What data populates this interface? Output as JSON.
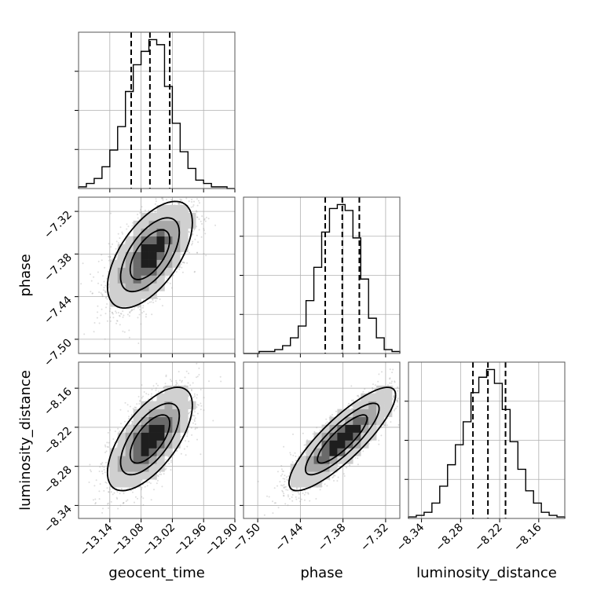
{
  "chart_data": {
    "type": "corner",
    "parameters": [
      {
        "name": "geocent_time",
        "axis_label": "geocent_time",
        "range": [
          -13.2,
          -12.9
        ],
        "ticks": [
          -13.14,
          -13.08,
          -13.02,
          -12.96,
          -12.9
        ],
        "tick_labels": [
          "−13.14",
          "−13.08",
          "−13.02",
          "−12.96",
          "−12.90"
        ],
        "quantiles": [
          -13.099,
          -13.063,
          -13.025
        ],
        "hist_bins": [
          -13.2,
          -13.185,
          -13.17,
          -13.155,
          -13.14,
          -13.125,
          -13.11,
          -13.095,
          -13.08,
          -13.065,
          -13.05,
          -13.035,
          -13.02,
          -13.005,
          -12.99,
          -12.975,
          -12.96,
          -12.945,
          -12.93,
          -12.915,
          -12.9
        ],
        "hist_counts": [
          1,
          3,
          6,
          13,
          23,
          37,
          58,
          74,
          82,
          89,
          86,
          61,
          39,
          22,
          12,
          5,
          3,
          1,
          1,
          0
        ]
      },
      {
        "name": "phase",
        "axis_label": "phase",
        "range": [
          -7.52,
          -7.3
        ],
        "ticks": [
          -7.5,
          -7.44,
          -7.38,
          -7.32
        ],
        "tick_labels": [
          "−7.50",
          "−7.44",
          "−7.38",
          "−7.32"
        ],
        "quantiles": [
          -7.405,
          -7.381,
          -7.357
        ],
        "hist_bins": [
          -7.52,
          -7.509,
          -7.498,
          -7.487,
          -7.476,
          -7.465,
          -7.454,
          -7.443,
          -7.432,
          -7.421,
          -7.41,
          -7.399,
          -7.388,
          -7.377,
          -7.366,
          -7.355,
          -7.344,
          -7.333,
          -7.322,
          -7.311,
          -7.3
        ],
        "hist_counts": [
          0,
          0,
          1,
          1,
          2,
          4,
          8,
          14,
          27,
          44,
          62,
          74,
          76,
          73,
          59,
          38,
          18,
          8,
          2,
          1
        ]
      },
      {
        "name": "luminosity_distance",
        "axis_label": "luminosity_distance",
        "range": [
          -8.36,
          -8.12
        ],
        "ticks": [
          -8.34,
          -8.28,
          -8.22,
          -8.16
        ],
        "tick_labels": [
          "−8.34",
          "−8.28",
          "−8.22",
          "−8.16"
        ],
        "quantiles": [
          -8.261,
          -8.238,
          -8.211
        ],
        "hist_bins": [
          -8.36,
          -8.348,
          -8.336,
          -8.324,
          -8.312,
          -8.3,
          -8.288,
          -8.276,
          -8.264,
          -8.252,
          -8.24,
          -8.228,
          -8.216,
          -8.204,
          -8.192,
          -8.18,
          -8.168,
          -8.156,
          -8.144,
          -8.132,
          -8.12
        ],
        "hist_counts": [
          1,
          2,
          4,
          10,
          21,
          35,
          48,
          63,
          82,
          92,
          97,
          88,
          71,
          50,
          32,
          18,
          10,
          4,
          2,
          1
        ]
      }
    ],
    "pairs": [
      {
        "x": "geocent_time",
        "y": "phase",
        "mean": [
          -13.063,
          -7.381
        ],
        "std": [
          0.038,
          0.035
        ],
        "corr": 0.6
      },
      {
        "x": "geocent_time",
        "y": "luminosity_distance",
        "mean": [
          -13.063,
          -8.238
        ],
        "std": [
          0.038,
          0.037
        ],
        "corr": 0.65
      },
      {
        "x": "phase",
        "y": "luminosity_distance",
        "mean": [
          -7.381,
          -8.238
        ],
        "std": [
          0.035,
          0.037
        ],
        "corr": 0.85
      }
    ],
    "grid": true,
    "colors": {
      "line": "#000000",
      "grid": "#b0b0b0",
      "points": "#9e9e9e"
    }
  }
}
